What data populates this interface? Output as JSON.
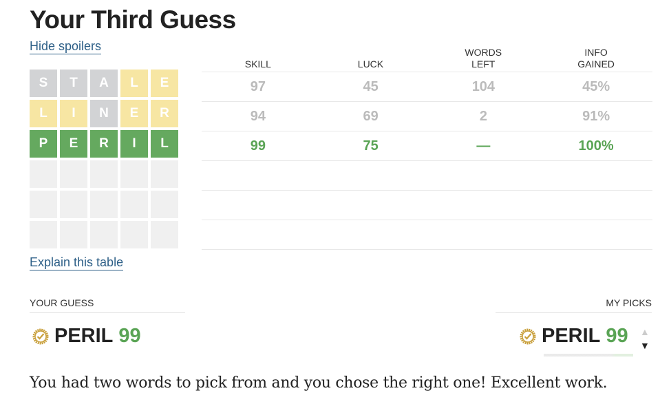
{
  "title": "Your Third Guess",
  "hide_spoilers": "Hide spoilers",
  "explain": "Explain this table",
  "grid": [
    [
      {
        "l": "S",
        "s": "absent"
      },
      {
        "l": "T",
        "s": "absent"
      },
      {
        "l": "A",
        "s": "absent"
      },
      {
        "l": "L",
        "s": "present"
      },
      {
        "l": "E",
        "s": "present"
      }
    ],
    [
      {
        "l": "L",
        "s": "present"
      },
      {
        "l": "I",
        "s": "present"
      },
      {
        "l": "N",
        "s": "absent"
      },
      {
        "l": "E",
        "s": "present"
      },
      {
        "l": "R",
        "s": "present"
      }
    ],
    [
      {
        "l": "P",
        "s": "correct"
      },
      {
        "l": "E",
        "s": "correct"
      },
      {
        "l": "R",
        "s": "correct"
      },
      {
        "l": "I",
        "s": "correct"
      },
      {
        "l": "L",
        "s": "correct"
      }
    ]
  ],
  "table": {
    "headers": [
      "SKILL",
      "LUCK",
      "WORDS LEFT",
      "INFO GAINED"
    ],
    "rows": [
      [
        "97",
        "45",
        "104",
        "45%"
      ],
      [
        "94",
        "69",
        "2",
        "91%"
      ],
      [
        "99",
        "75",
        "—",
        "100%"
      ]
    ]
  },
  "your_guess": {
    "label": "YOUR GUESS",
    "word": "PERIL",
    "score": "99"
  },
  "my_picks": {
    "label": "MY PICKS",
    "word": "PERIL",
    "score": "99"
  },
  "colors": {
    "correct": "#65a95f",
    "present": "#f7e6a3",
    "absent": "#d2d3d5",
    "link": "#2d5f87"
  },
  "message": "You had two words to pick from and you chose the right one! Excellent work."
}
